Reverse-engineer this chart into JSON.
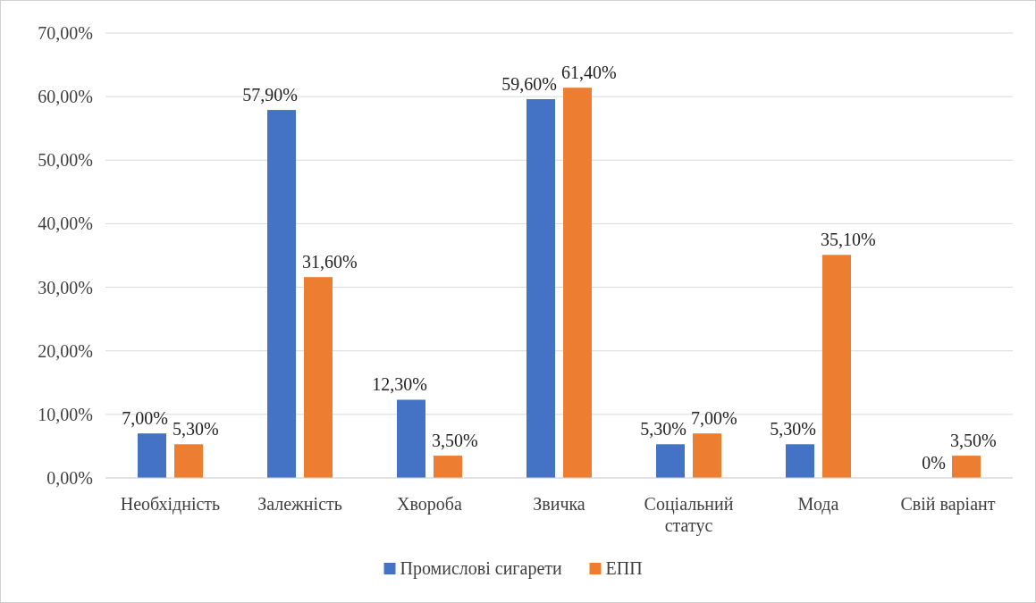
{
  "chart_data": {
    "type": "bar",
    "categories": [
      "Необхідність",
      "Залежність",
      "Хвороба",
      "Звичка",
      "Соціальний статус",
      "Мода",
      "Свій варіант"
    ],
    "series": [
      {
        "name": "Промислові сигарети",
        "color": "#4472c4",
        "values": [
          7.0,
          57.9,
          12.3,
          59.6,
          5.3,
          5.3,
          0
        ],
        "value_labels": [
          "7,00%",
          "57,90%",
          "12,30%",
          "59,60%",
          "5,30%",
          "5,30%",
          "0%"
        ]
      },
      {
        "name": "ЕПП",
        "color": "#ed7d31",
        "values": [
          5.3,
          31.6,
          3.5,
          61.4,
          7.0,
          35.1,
          3.5
        ],
        "value_labels": [
          "5,30%",
          "31,60%",
          "3,50%",
          "61,40%",
          "7,00%",
          "35,10%",
          "3,50%"
        ]
      }
    ],
    "ylim": [
      0,
      70
    ],
    "yticks": [
      {
        "value": 0,
        "label": "0,00%"
      },
      {
        "value": 10,
        "label": "10,00%"
      },
      {
        "value": 20,
        "label": "20,00%"
      },
      {
        "value": 30,
        "label": "30,00%"
      },
      {
        "value": 40,
        "label": "40,00%"
      },
      {
        "value": 50,
        "label": "50,00%"
      },
      {
        "value": 60,
        "label": "60,00%"
      },
      {
        "value": 70,
        "label": "70,00%"
      }
    ],
    "grid": "y",
    "legend": "bottom"
  }
}
